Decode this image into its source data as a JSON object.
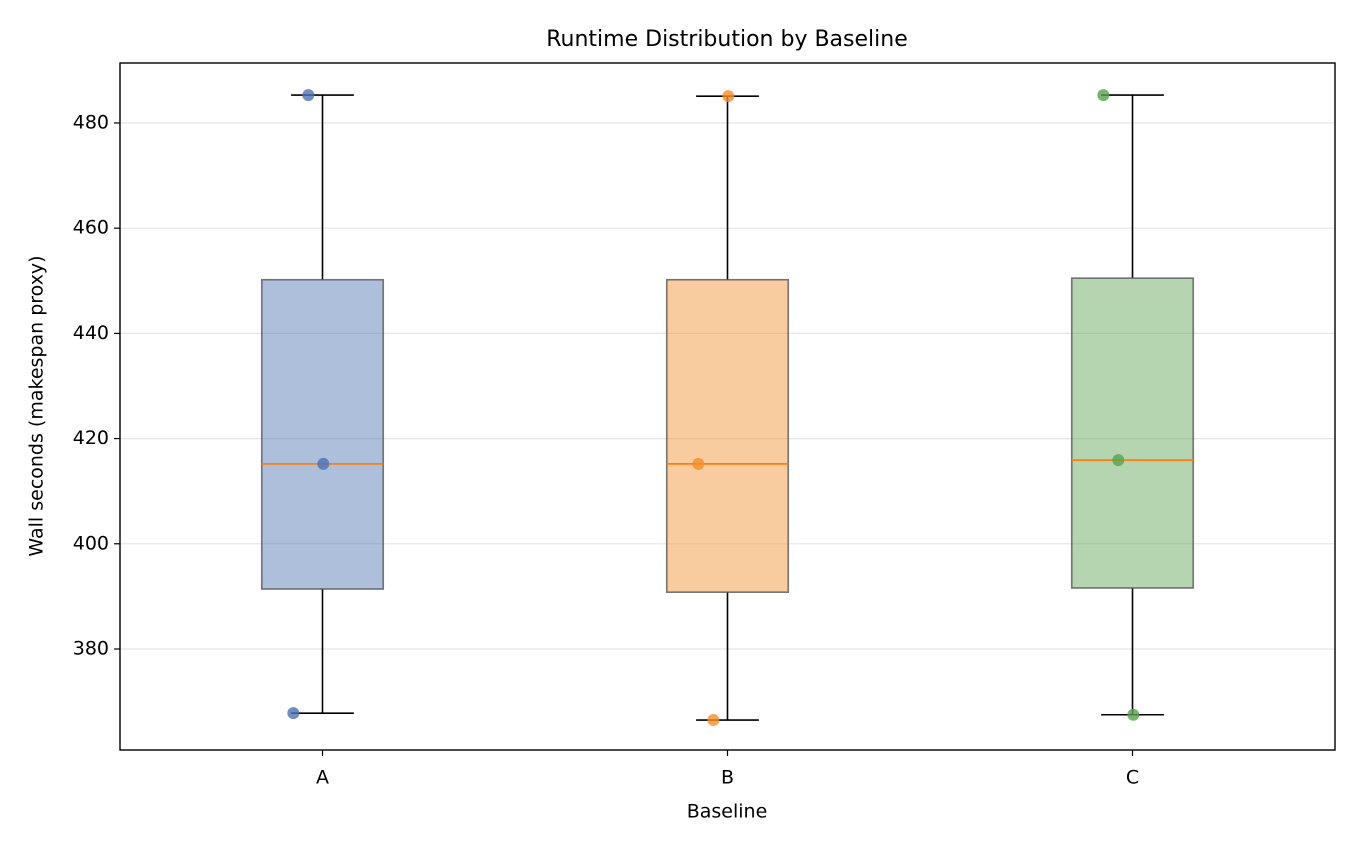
{
  "chart_data": {
    "type": "box",
    "title": "Runtime Distribution by Baseline",
    "x_label": "Baseline",
    "y_label": "Wall seconds (makespan proxy)",
    "categories": [
      "A",
      "B",
      "C"
    ],
    "boxes": [
      {
        "color": "#4c72b0",
        "whisker_low": 367.8,
        "q1": 391.4,
        "median": 415.2,
        "q3": 450.2,
        "whisker_high": 485.3,
        "points": [
          485.3,
          415.2,
          367.8
        ]
      },
      {
        "color": "#f28e2b",
        "whisker_low": 366.5,
        "q1": 390.8,
        "median": 415.2,
        "q3": 450.2,
        "whisker_high": 485.1,
        "points": [
          485.1,
          415.2,
          366.5
        ]
      },
      {
        "color": "#59a14f",
        "whisker_low": 367.5,
        "q1": 391.6,
        "median": 415.9,
        "q3": 450.5,
        "whisker_high": 485.3,
        "points": [
          485.3,
          415.9,
          367.5
        ]
      }
    ],
    "median_color": "#ff7f0e",
    "ylim": [
      360.8,
      491.4
    ],
    "yticks": [
      380,
      400,
      420,
      440,
      460,
      480
    ],
    "grid": true
  }
}
